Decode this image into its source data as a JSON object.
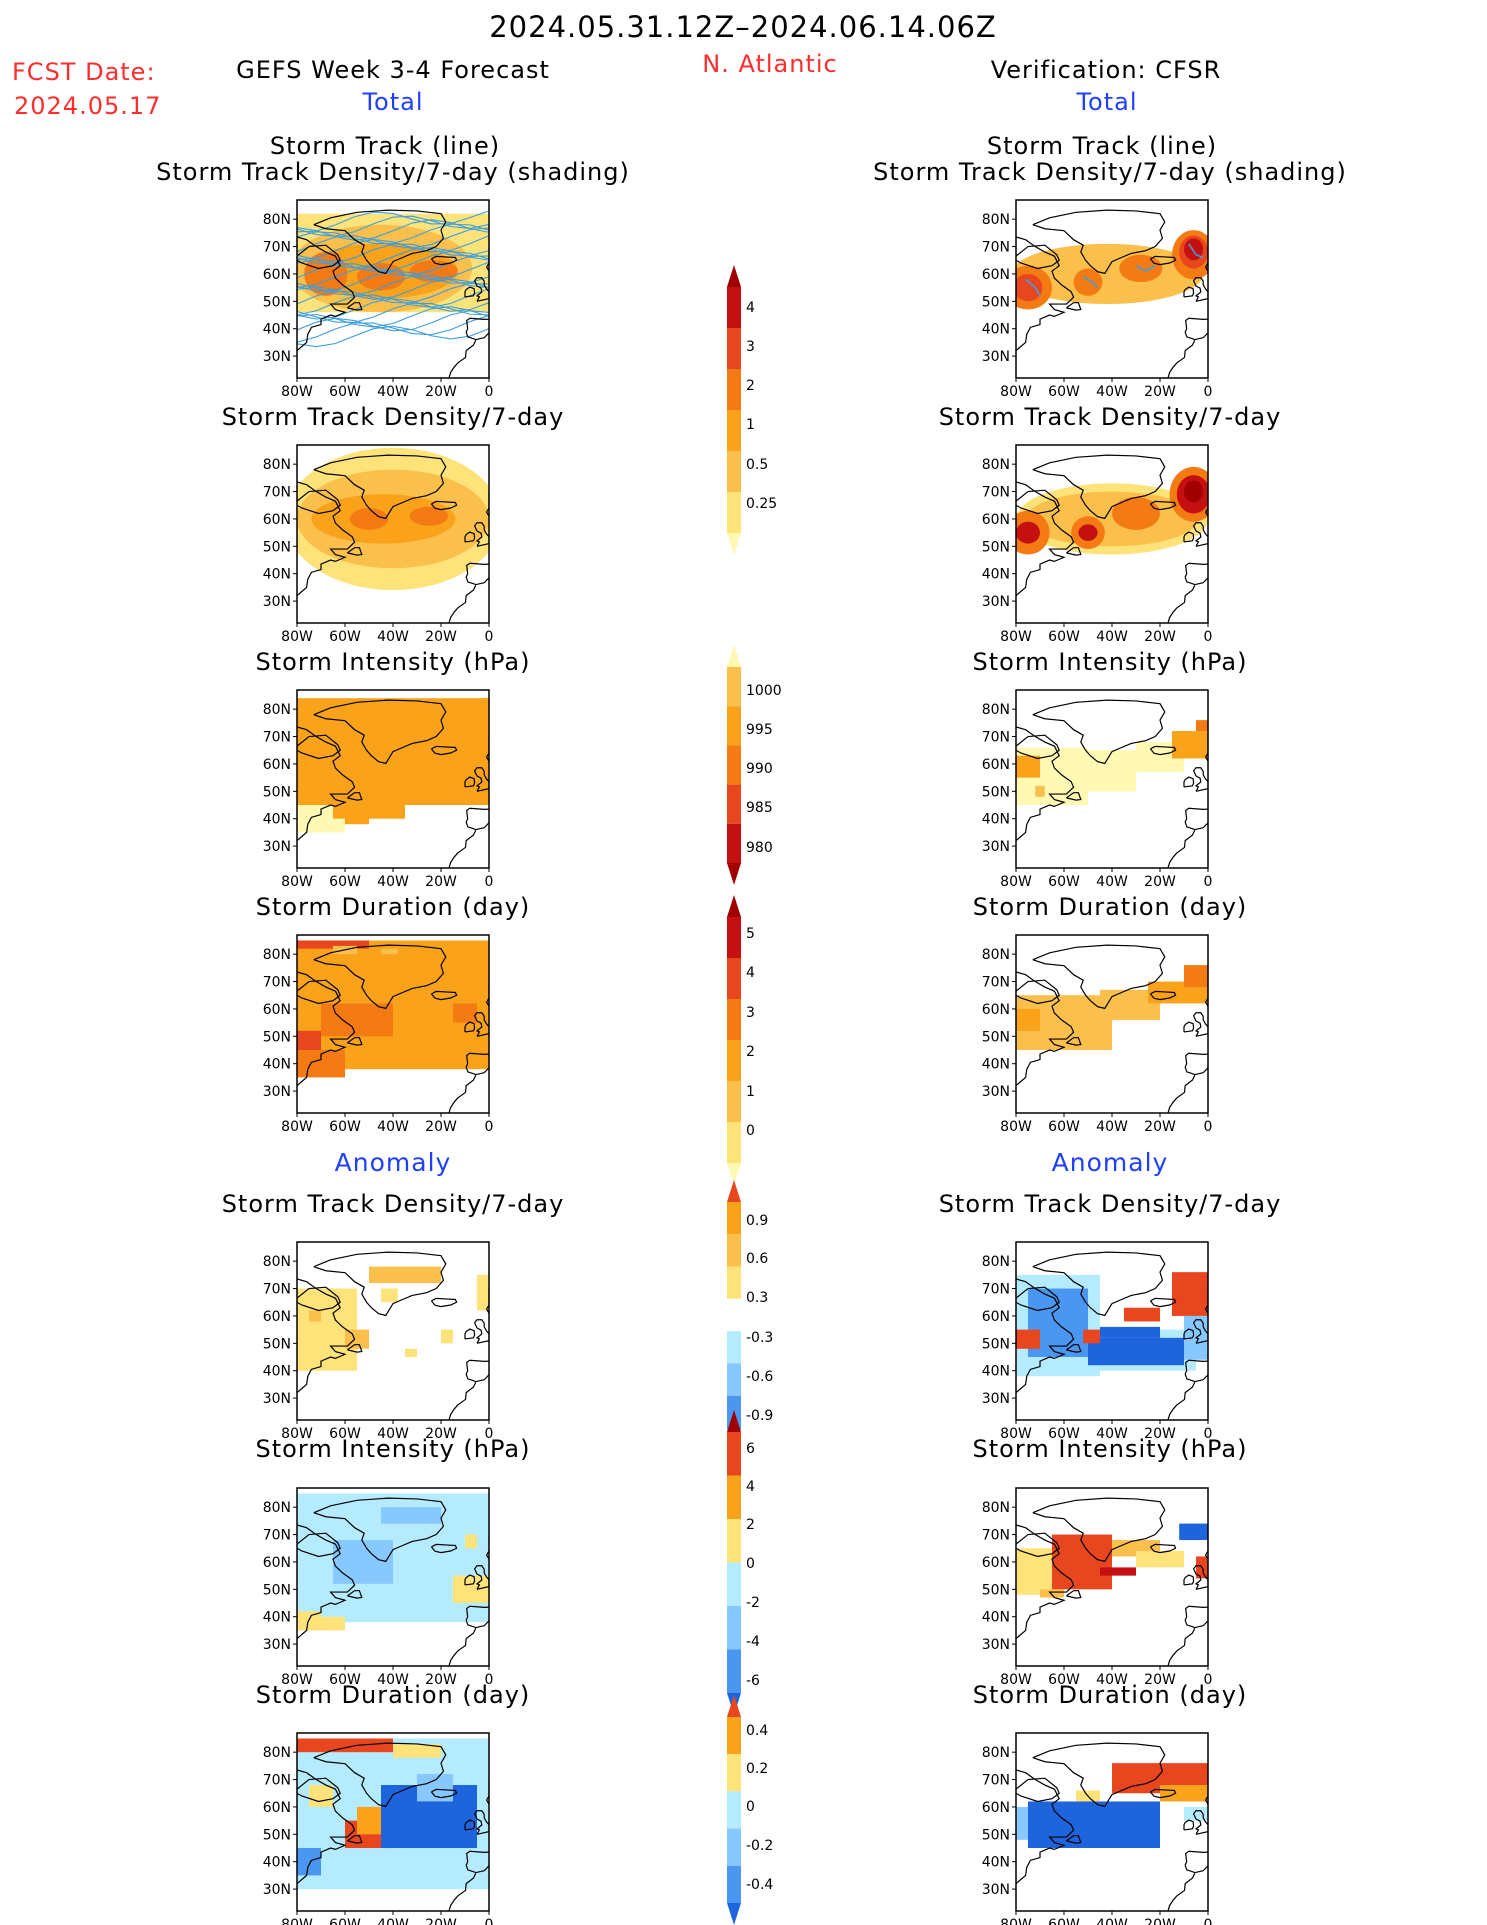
{
  "header": {
    "period": "2024.05.31.12Z–2024.06.14.06Z",
    "fcst_label": "FCST Date:",
    "fcst_date": "2024.05.17",
    "forecast_title": "GEFS Week 3-4 Forecast",
    "region": "N. Atlantic",
    "verification_title": "Verification: CFSR",
    "total_label": "Total",
    "anomaly_label": "Anomaly"
  },
  "panel_titles": {
    "track_line": "Storm Track (line)",
    "track_shading": "Storm Track Density/7-day (shading)",
    "density": "Storm Track Density/7-day",
    "intensity": "Storm Intensity (hPa)",
    "duration": "Storm Duration (day)"
  },
  "axes": {
    "lat_ticks": [
      "80N",
      "70N",
      "60N",
      "50N",
      "40N",
      "30N"
    ],
    "lon_ticks": [
      "80W",
      "60W",
      "40W",
      "20W",
      "0"
    ],
    "lon_range": [
      -80,
      0
    ],
    "lat_range": [
      22,
      87
    ]
  },
  "colors": {
    "yellow1": "#fff9b4",
    "yellow2": "#fde37a",
    "orange1": "#fbbf4c",
    "orange2": "#f9a21a",
    "orange3": "#f47b13",
    "red1": "#e8461f",
    "red2": "#c41010",
    "darkred": "#a00000",
    "lightblue1": "#b4ebff",
    "lightblue2": "#86c8ff",
    "blue1": "#4a96f0",
    "blue2": "#1e64dc",
    "track_line": "#3c9ee0"
  },
  "colorbars": [
    {
      "id": "density_total",
      "labels": [
        "4",
        "3",
        "2",
        "1",
        "0.5",
        "0.25"
      ]
    },
    {
      "id": "intensity_total",
      "labels": [
        "1000",
        "995",
        "990",
        "985",
        "980"
      ]
    },
    {
      "id": "duration_total",
      "labels": [
        "5",
        "4",
        "3",
        "2",
        "1",
        "0"
      ]
    },
    {
      "id": "density_anom",
      "labels": [
        "0.9",
        "0.6",
        "0.3",
        "-0.3",
        "-0.6",
        "-0.9"
      ]
    },
    {
      "id": "intensity_anom",
      "labels": [
        "6",
        "4",
        "2",
        "0",
        "-2",
        "-4",
        "-6"
      ]
    },
    {
      "id": "duration_anom",
      "labels": [
        "0.4",
        "0.2",
        "0",
        "-0.2",
        "-0.4"
      ]
    }
  ],
  "chart_data": [
    {
      "type": "heatmap",
      "panel": "GEFS total storm track (line) and density (shading)",
      "units": "tracks/7-day",
      "levels": [
        0.25,
        0.5,
        1,
        2,
        3,
        4
      ],
      "note": "multiple ensemble track lines; high density 55–65N across basin"
    },
    {
      "type": "heatmap",
      "panel": "CFSR total storm track (line) and density (shading)",
      "units": "tracks/7-day",
      "levels": [
        0.25,
        0.5,
        1,
        2,
        3,
        4
      ],
      "maxima_lonlat": [
        [
          -75,
          55
        ],
        [
          -50,
          57
        ],
        [
          -30,
          62
        ],
        [
          -5,
          68
        ]
      ]
    },
    {
      "type": "heatmap",
      "panel": "GEFS total storm track density/7-day",
      "levels": [
        0.25,
        0.5,
        1,
        2,
        3,
        4
      ],
      "maxima_lonlat": [
        [
          -50,
          60
        ],
        [
          -25,
          61
        ]
      ]
    },
    {
      "type": "heatmap",
      "panel": "CFSR total storm track density/7-day",
      "levels": [
        0.25,
        0.5,
        1,
        2,
        3,
        4
      ],
      "maxima_lonlat": [
        [
          -75,
          55
        ],
        [
          -50,
          55
        ],
        [
          -30,
          62
        ],
        [
          -5,
          70
        ]
      ]
    },
    {
      "type": "heatmap",
      "panel": "GEFS total storm intensity",
      "units": "hPa",
      "levels": [
        1000,
        995,
        990,
        985,
        980
      ],
      "dominant_range": "990–995"
    },
    {
      "type": "heatmap",
      "panel": "CFSR total storm intensity",
      "units": "hPa",
      "levels": [
        1000,
        995,
        990,
        985,
        980
      ],
      "dominant_range": "995–1000"
    },
    {
      "type": "heatmap",
      "panel": "GEFS total storm duration",
      "units": "day",
      "levels": [
        0,
        1,
        2,
        3,
        4,
        5
      ],
      "dominant_range": "3–4"
    },
    {
      "type": "heatmap",
      "panel": "CFSR total storm duration",
      "units": "day",
      "levels": [
        0,
        1,
        2,
        3,
        4,
        5
      ],
      "dominant_range": "2–3"
    },
    {
      "type": "heatmap",
      "panel": "GEFS anomaly storm track density/7-day",
      "levels": [
        -0.9,
        -0.6,
        -0.3,
        0.3,
        0.6,
        0.9
      ],
      "dominant_range": "0.3–0.6"
    },
    {
      "type": "heatmap",
      "panel": "CFSR anomaly storm track density/7-day",
      "levels": [
        -0.9,
        -0.6,
        -0.3,
        0.3,
        0.6,
        0.9
      ],
      "note": "negative 40–55N mid-basin, positive 60–75N east and 50–55N west"
    },
    {
      "type": "heatmap",
      "panel": "GEFS anomaly storm intensity",
      "units": "hPa",
      "levels": [
        -6,
        -4,
        -2,
        0,
        2,
        4,
        6
      ],
      "dominant_range": "-2–0"
    },
    {
      "type": "heatmap",
      "panel": "CFSR anomaly storm intensity",
      "units": "hPa",
      "levels": [
        -6,
        -4,
        -2,
        0,
        2,
        4,
        6
      ],
      "note": "positive 4–6 at 55–70N, 40–60W"
    },
    {
      "type": "heatmap",
      "panel": "GEFS anomaly storm duration",
      "units": "day",
      "levels": [
        -0.4,
        -0.2,
        0,
        0.2,
        0.4
      ],
      "note": "negative 45–68N east of 45W, positive near Newfoundland"
    },
    {
      "type": "heatmap",
      "panel": "CFSR anomaly storm duration",
      "units": "day",
      "levels": [
        -0.4,
        -0.2,
        0,
        0.2,
        0.4
      ],
      "note": "positive 65–75N east, negative 45–60N"
    }
  ]
}
